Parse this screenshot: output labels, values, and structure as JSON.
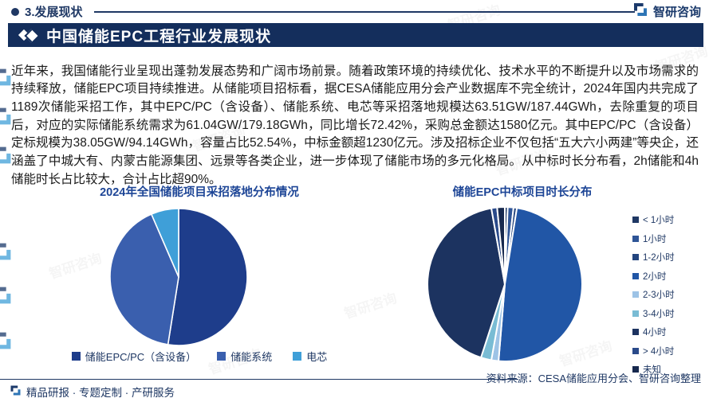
{
  "page": {
    "section_label": "3.发展现状",
    "banner_title": "中国储能EPC工程行业发展现状",
    "brand": "智研咨询",
    "body_paragraph": "近年来，我国储能行业呈现出蓬勃发展态势和广阔市场前景。随着政策环境的持续优化、技术水平的不断提升以及市场需求的持续释放，储能EPC项目持续推进。从储能项目招标看，据CESA储能应用分会产业数据库不完全统计，2024年国内共完成了1189次储能采招工作，其中EPC/PC（含设备）、储能系统、电芯等采招落地规模达63.51GW/187.44GWh，去除重复的项目后，对应的实际储能系统需求为61.04GW/179.18GWh，同比增长72.42%，采购总金额达1580亿元。其中EPC/PC（含设备）定标规模为38.05GW/94.14GWh，容量占比52.54%，中标金额超1230亿元。涉及招标企业不仅包括“五大六小两建”等央企，还涵盖了中城大有、内蒙古能源集团、远景等各类企业，进一步体现了储能市场的多元化格局。从中标时长分布看，2h储能和4h储能时长占比较大，合计占比超90%。",
    "source_note": "资料来源：CESA储能应用分会、智研咨询整理",
    "footer_tagline": "精品研报 · 专题定制 · 产研服务",
    "watermark_text": "智研咨询",
    "colors": {
      "accent_navy": "#1f3864",
      "banner_navy": "#142e5c",
      "title_blue": "#1d4596"
    }
  },
  "chart_data": [
    {
      "type": "pie",
      "title": "2024年全国储能项目采招落地分布情况",
      "legend_position": "bottom",
      "slices": [
        {
          "label": "储能EPC/PC（含设备）",
          "value": 52.5,
          "color": "#1e3d8b"
        },
        {
          "label": "储能系统",
          "value": 41.0,
          "color": "#3a5fae"
        },
        {
          "label": "电芯",
          "value": 6.5,
          "color": "#3f9fd8"
        }
      ]
    },
    {
      "type": "pie",
      "title": "储能EPC中标项目时长分布",
      "legend_position": "right",
      "slices": [
        {
          "label": "< 1小时",
          "value": 0.6,
          "color": "#1f3864"
        },
        {
          "label": "1小时",
          "value": 1.2,
          "color": "#2f5597"
        },
        {
          "label": "1-2小时",
          "value": 0.7,
          "color": "#24457f"
        },
        {
          "label": "2小时",
          "value": 48.8,
          "color": "#2156a6"
        },
        {
          "label": "2-3小时",
          "value": 1.5,
          "color": "#9dc3e6"
        },
        {
          "label": "3-4小时",
          "value": 2.2,
          "color": "#79bcd4"
        },
        {
          "label": "4小时",
          "value": 42.2,
          "color": "#1c3360"
        },
        {
          "label": "> 4小时",
          "value": 1.2,
          "color": "#2a4a8a"
        },
        {
          "label": "未知",
          "value": 1.6,
          "color": "#17294e"
        }
      ]
    }
  ]
}
